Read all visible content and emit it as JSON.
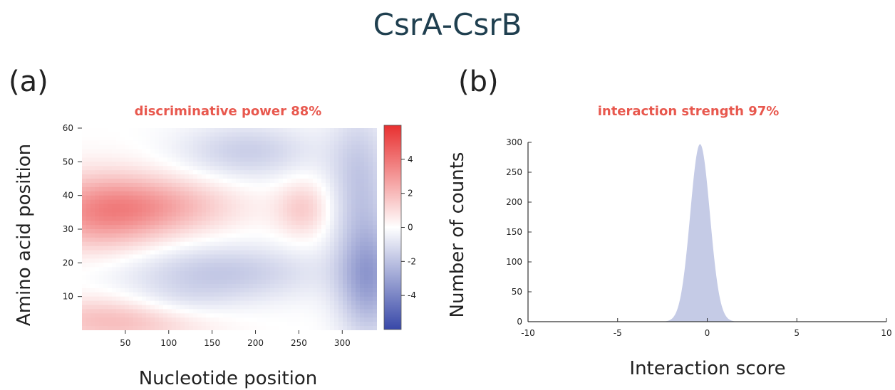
{
  "figure": {
    "title": "CsrA-CsrB",
    "panel_a_label": "(a)",
    "panel_b_label": "(b)"
  },
  "colors": {
    "title": "#1f3f4f",
    "subtitle": "#e8584e",
    "heatmap_positive": "#e83c3c",
    "heatmap_negative": "#3c4fb0",
    "histogram_fill": "#c5cbe6"
  },
  "chart_data": [
    {
      "type": "heatmap",
      "title": "discriminative power 88%",
      "xlabel": "Nucleotide position",
      "ylabel": "Amino acid position",
      "xlim": [
        0,
        340
      ],
      "ylim": [
        0,
        60
      ],
      "xticks": [
        50,
        100,
        150,
        200,
        250,
        300
      ],
      "yticks": [
        10,
        20,
        30,
        40,
        50,
        60
      ],
      "colorbar": {
        "range": [
          -6,
          6
        ],
        "ticks": [
          4,
          2,
          0,
          -2,
          -4
        ]
      },
      "regions": [
        {
          "x": 20,
          "y": 35,
          "sx": 55,
          "sy": 8,
          "value": 3.0
        },
        {
          "x": 100,
          "y": 37,
          "sx": 60,
          "sy": 6,
          "value": 1.8
        },
        {
          "x": 255,
          "y": 36,
          "sx": 22,
          "sy": 6,
          "value": 1.5
        },
        {
          "x": 40,
          "y": 3,
          "sx": 70,
          "sy": 5,
          "value": 2.0
        },
        {
          "x": 190,
          "y": 53,
          "sx": 55,
          "sy": 6,
          "value": -1.6
        },
        {
          "x": 320,
          "y": 45,
          "sx": 25,
          "sy": 15,
          "value": -1.8
        },
        {
          "x": 160,
          "y": 17,
          "sx": 80,
          "sy": 6,
          "value": -1.8
        },
        {
          "x": 330,
          "y": 15,
          "sx": 25,
          "sy": 12,
          "value": -3.0
        },
        {
          "x": 110,
          "y": 8,
          "sx": 45,
          "sy": 4,
          "value": -0.8
        }
      ]
    },
    {
      "type": "area",
      "title": "interaction strength 97%",
      "xlabel": "Interaction score",
      "ylabel": "Number of counts",
      "xlim": [
        -10,
        10
      ],
      "ylim": [
        0,
        300
      ],
      "xticks": [
        -10,
        -5,
        0,
        5,
        10
      ],
      "yticks": [
        0,
        50,
        100,
        150,
        200,
        250,
        300
      ],
      "distribution": {
        "peak_x": -0.4,
        "peak_y": 297,
        "spread": 0.55
      }
    }
  ]
}
